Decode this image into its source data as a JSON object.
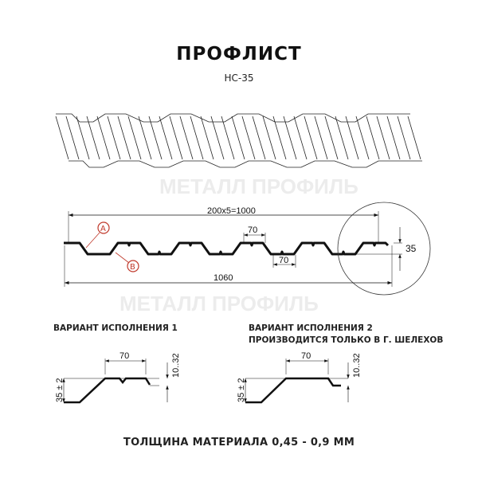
{
  "header": {
    "title": "ПРОФЛИСТ",
    "model": "НС-35"
  },
  "watermark": "МЕТАЛЛ ПРОФИЛЬ",
  "main_drawing": {
    "dim_pitch": "200х5=1000",
    "dim_ridge_top": "70",
    "dim_trough_bottom": "70",
    "dim_height": "35",
    "dim_total_width": "1060",
    "marker_a": "A",
    "marker_b": "B",
    "marker_color": "#c0392b"
  },
  "variant1": {
    "title": "ВАРИАНТ ИСПОЛНЕНИЯ 1",
    "dim_top": "70",
    "dim_side": "10..32",
    "dim_height": "35 ± 2"
  },
  "variant2": {
    "title": "ВАРИАНТ ИСПОЛНЕНИЯ 2",
    "note": "ПРОИЗВОДИТСЯ ТОЛЬКО В Г. ШЕЛЕХОВ",
    "dim_top": "70",
    "dim_side": "10..32",
    "dim_height": "35 ± 2"
  },
  "footer": {
    "thickness": "ТОЛЩИНА МАТЕРИАЛА 0,45 - 0,9 ММ"
  }
}
